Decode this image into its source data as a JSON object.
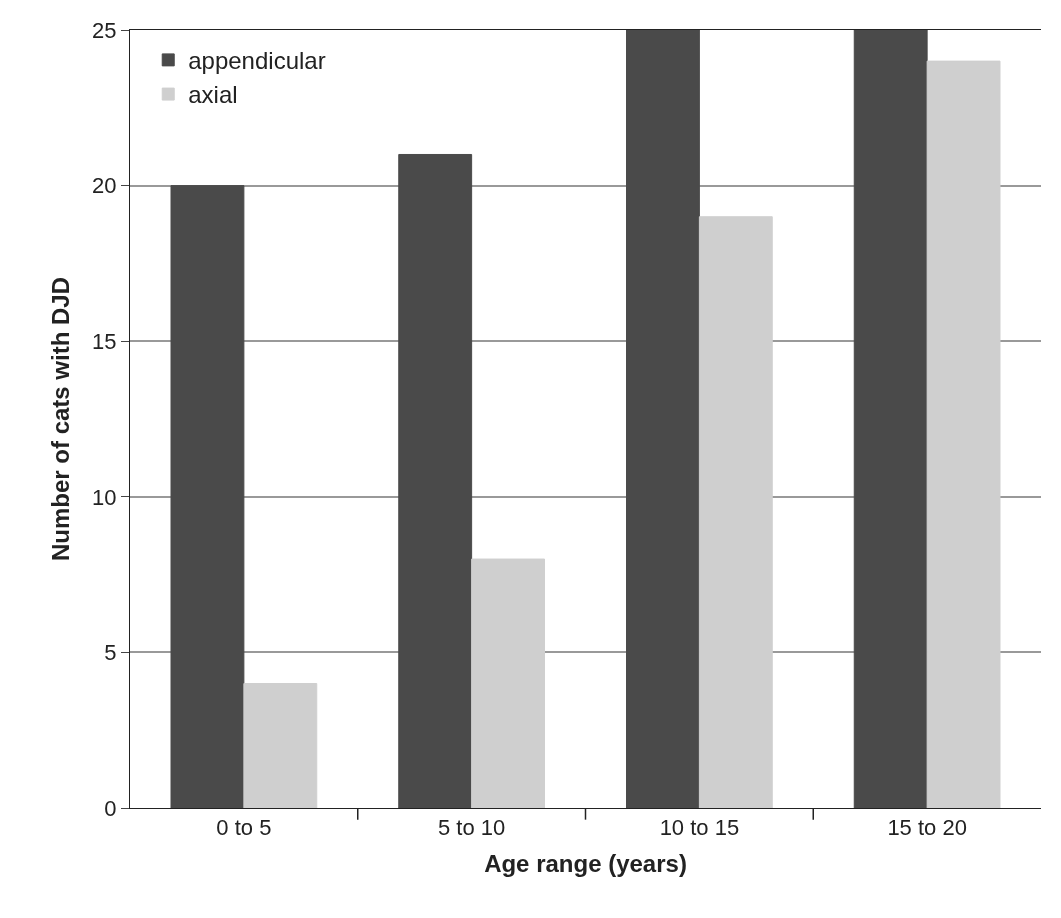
{
  "chart_data": {
    "type": "bar",
    "xlabel": "Age range (years)",
    "ylabel": "Number of cats with DJD",
    "categories": [
      "0 to 5",
      "5 to 10",
      "10 to 15",
      "15 to 20"
    ],
    "series": [
      {
        "name": "appendicular",
        "color": "#4a4a4a",
        "values": [
          20,
          21,
          25,
          25
        ]
      },
      {
        "name": "axial",
        "color": "#cfcfcf",
        "values": [
          4,
          8,
          19,
          24
        ]
      }
    ],
    "ylim": [
      0,
      25
    ],
    "yticks": [
      0,
      5,
      10,
      15,
      20,
      25
    ],
    "grid": "y",
    "legend": "top left"
  }
}
